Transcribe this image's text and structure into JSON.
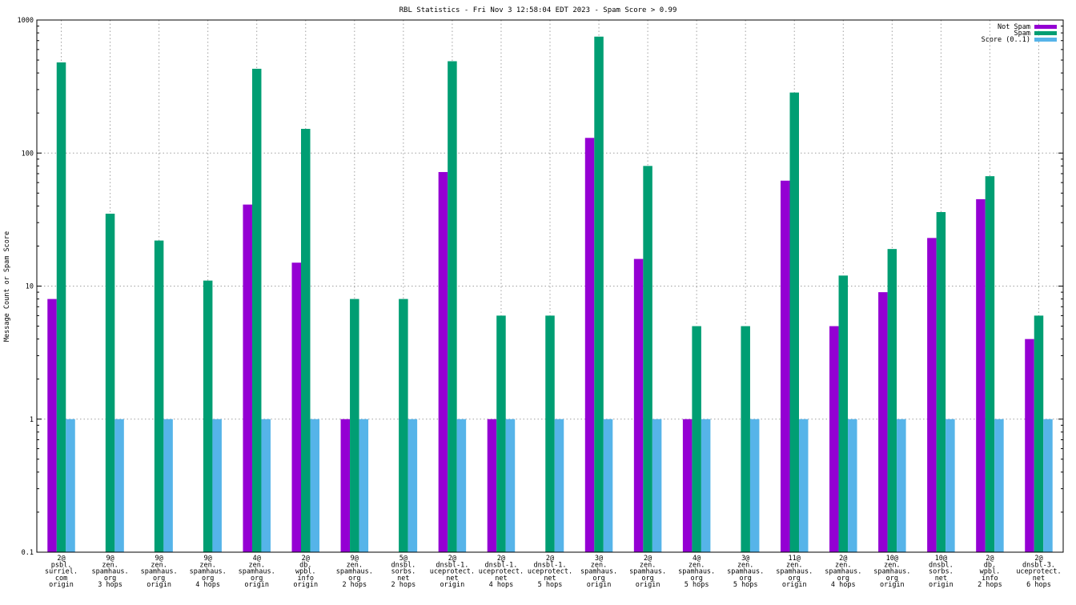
{
  "chart_data": {
    "type": "bar",
    "title": "RBL Statistics - Fri Nov  3 12:58:04 EDT 2023 - Spam Score > 0.99",
    "xlabel": "",
    "ylabel": "Message Count or Spam Score",
    "yscale": "log",
    "ylim": [
      0.1,
      1000
    ],
    "yticks": [
      {
        "value": 0.1,
        "label": "0.1"
      },
      {
        "value": 1,
        "label": "1"
      },
      {
        "value": 10,
        "label": "10"
      },
      {
        "value": 100,
        "label": "100"
      },
      {
        "value": 1000,
        "label": "1000"
      }
    ],
    "grid": true,
    "legend_position": "top-right",
    "categories": [
      [
        "2@",
        "psbl.",
        "surriel.",
        "com",
        "origin"
      ],
      [
        "9@",
        "zen.",
        "spamhaus.",
        "org",
        "3 hops"
      ],
      [
        "9@",
        "zen.",
        "spamhaus.",
        "org",
        "origin"
      ],
      [
        "9@",
        "zen.",
        "spamhaus.",
        "org",
        "4 hops"
      ],
      [
        "4@",
        "zen.",
        "spamhaus.",
        "org",
        "origin"
      ],
      [
        "2@",
        "db.",
        "wpbl.",
        "info",
        "origin"
      ],
      [
        "9@",
        "zen.",
        "spamhaus.",
        "org",
        "2 hops"
      ],
      [
        "5@",
        "dnsbl.",
        "sorbs.",
        "net",
        "2 hops"
      ],
      [
        "2@",
        "dnsbl-1.",
        "uceprotect.",
        "net",
        "origin"
      ],
      [
        "2@",
        "dnsbl-1.",
        "uceprotect.",
        "net",
        "4 hops"
      ],
      [
        "2@",
        "dnsbl-1.",
        "uceprotect.",
        "net",
        "5 hops"
      ],
      [
        "3@",
        "zen.",
        "spamhaus.",
        "org",
        "origin"
      ],
      [
        "2@",
        "zen.",
        "spamhaus.",
        "org",
        "origin"
      ],
      [
        "4@",
        "zen.",
        "spamhaus.",
        "org",
        "5 hops"
      ],
      [
        "3@",
        "zen.",
        "spamhaus.",
        "org",
        "5 hops"
      ],
      [
        "11@",
        "zen.",
        "spamhaus.",
        "org",
        "origin"
      ],
      [
        "2@",
        "zen.",
        "spamhaus.",
        "org",
        "4 hops"
      ],
      [
        "10@",
        "zen.",
        "spamhaus.",
        "org",
        "origin"
      ],
      [
        "10@",
        "dnsbl.",
        "sorbs.",
        "net",
        "origin"
      ],
      [
        "2@",
        "db.",
        "wpbl.",
        "info",
        "2 hops"
      ],
      [
        "2@",
        "dnsbl-3.",
        "uceprotect.",
        "net",
        "6 hops"
      ]
    ],
    "series": [
      {
        "name": "Not Spam",
        "color": "#9400d3",
        "values": [
          8,
          null,
          null,
          null,
          41,
          15,
          1,
          null,
          72,
          1,
          null,
          130,
          16,
          1,
          null,
          62,
          5,
          9,
          23,
          45,
          4
        ]
      },
      {
        "name": "Spam",
        "color": "#009e73",
        "values": [
          480,
          35,
          22,
          11,
          430,
          152,
          8,
          8,
          490,
          6,
          6,
          750,
          80,
          5,
          5,
          285,
          12,
          19,
          36,
          67,
          6
        ]
      },
      {
        "name": "Score (0..1)",
        "color": "#56b4e9",
        "values": [
          1,
          1,
          1,
          1,
          1,
          1,
          1,
          1,
          1,
          1,
          1,
          1,
          1,
          1,
          1,
          1,
          1,
          1,
          1,
          1,
          1
        ]
      }
    ]
  }
}
